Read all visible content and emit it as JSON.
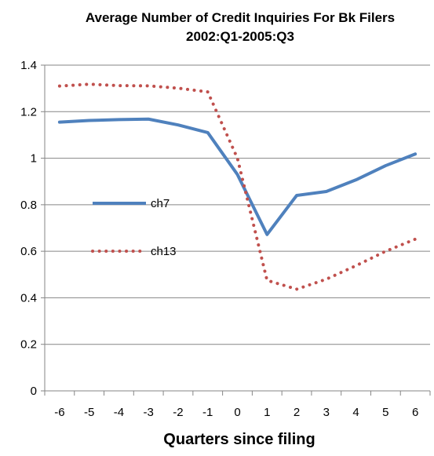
{
  "chart_data": {
    "type": "line",
    "title": "Average Number of Credit Inquiries For Bk Filers",
    "subtitle": "2002:Q1-2005:Q3",
    "xlabel": "Quarters since filing",
    "ylabel": "",
    "categories": [
      "-6",
      "-5",
      "-4",
      "-3",
      "-2",
      "-1",
      "0",
      "1",
      "2",
      "3",
      "4",
      "5",
      "6"
    ],
    "x": [
      -6,
      -5,
      -4,
      -3,
      -2,
      -1,
      0,
      1,
      2,
      3,
      4,
      5,
      6
    ],
    "ylim": [
      0,
      1.4
    ],
    "yticks": [
      "0",
      "0.2",
      "0.4",
      "0.6",
      "0.8",
      "1",
      "1.2",
      "1.4"
    ],
    "grid": true,
    "legend_position": "left-center",
    "series": [
      {
        "name": "ch7",
        "style": "solid",
        "color": "#4F81BD",
        "values": [
          1.155,
          1.162,
          1.166,
          1.168,
          1.143,
          1.11,
          0.93,
          0.672,
          0.84,
          0.857,
          0.907,
          0.968,
          1.018
        ]
      },
      {
        "name": "ch13",
        "style": "dotted",
        "color": "#C0504D",
        "values": [
          1.31,
          1.318,
          1.312,
          1.311,
          1.301,
          1.285,
          1.0,
          0.475,
          0.437,
          0.48,
          0.538,
          0.6,
          0.652
        ]
      }
    ]
  }
}
